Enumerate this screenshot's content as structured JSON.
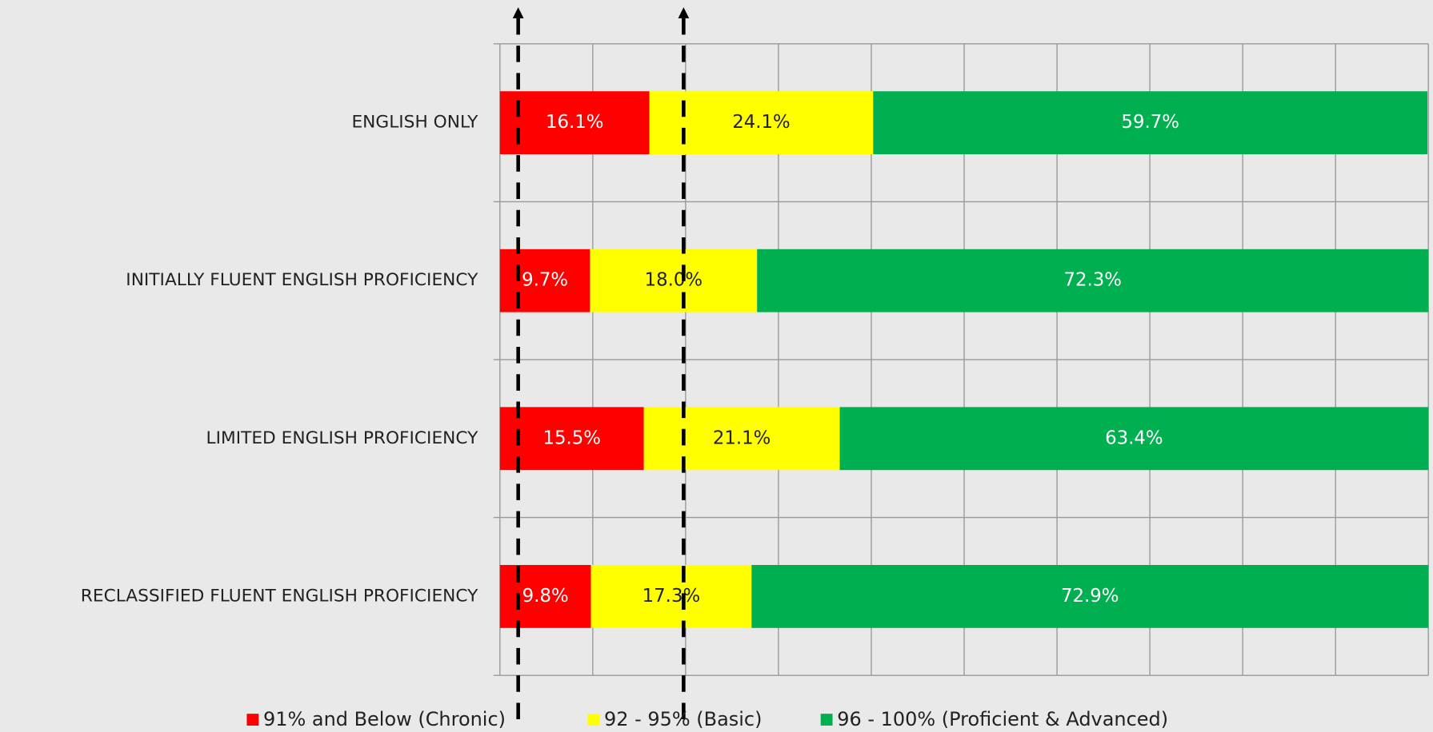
{
  "chart_data": {
    "type": "stacked_barh",
    "categories": [
      "ENGLISH ONLY",
      "INITIALLY FLUENT ENGLISH PROFICIENCY",
      "LIMITED ENGLISH PROFICIENCY",
      "RECLASSIFIED FLUENT ENGLISH PROFICIENCY"
    ],
    "series": [
      {
        "name": "91% and Below (Chronic)",
        "color": "#ff0000",
        "values": [
          16.1,
          9.7,
          15.5,
          9.8
        ],
        "value_labels": [
          "16.1%",
          "9.7%",
          "15.5%",
          "9.8%"
        ]
      },
      {
        "name": "92 - 95% (Basic)",
        "color": "#ffff00",
        "values": [
          24.1,
          18.0,
          21.1,
          17.3
        ],
        "value_labels": [
          "24.1%",
          "18.0%",
          "21.1%",
          "17.3%"
        ]
      },
      {
        "name": "96 - 100% (Proficient & Advanced)",
        "color": "#00b050",
        "values": [
          59.7,
          72.3,
          63.4,
          72.9
        ],
        "value_labels": [
          "59.7%",
          "72.3%",
          "63.4%",
          "72.9%"
        ]
      }
    ],
    "xlim": [
      0,
      100
    ],
    "xticks": [
      0,
      10,
      20,
      30,
      40,
      50,
      60,
      70,
      80,
      90,
      100
    ],
    "grid": true,
    "legend": "bottom"
  }
}
